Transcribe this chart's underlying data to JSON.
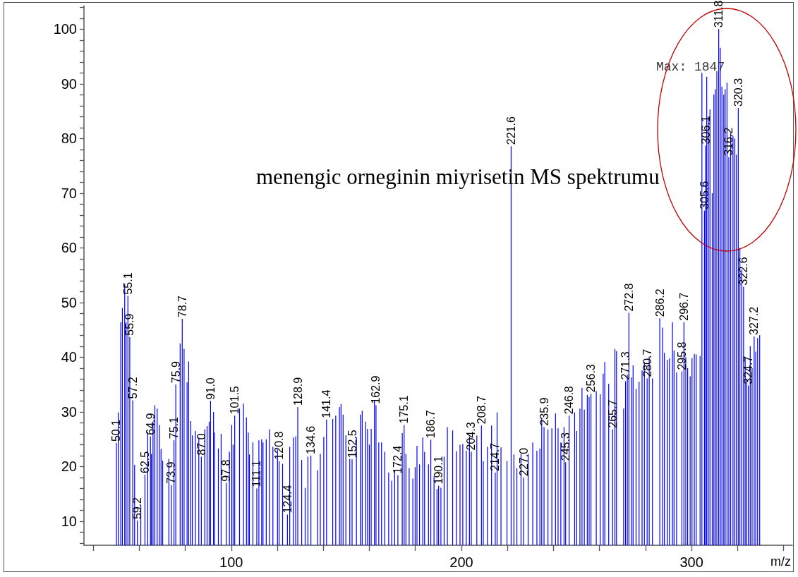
{
  "chart_data": {
    "type": "bar",
    "title": "menengic orneginin miyrisetin MS spektrumu",
    "xlabel": "m/z",
    "annotations": [
      "Max: 1847",
      {
        "text": "50.1",
        "x": 50.1,
        "y": 24.3
      },
      {
        "text": "55.1",
        "x": 55.1,
        "y": 51.2
      },
      {
        "text": "55.9",
        "x": 55.9,
        "y": 43.7
      },
      {
        "text": "57.2",
        "x": 57.2,
        "y": 32.1
      },
      {
        "text": "59.2",
        "x": 59.2,
        "y": 10.1
      },
      {
        "text": "62.5",
        "x": 62.5,
        "y": 18.5
      },
      {
        "text": "64.9",
        "x": 64.9,
        "y": 25.5
      },
      {
        "text": "73.9",
        "x": 73.9,
        "y": 16.6
      },
      {
        "text": "75.1",
        "x": 75.1,
        "y": 24.8
      },
      {
        "text": "75.9",
        "x": 75.9,
        "y": 35.0
      },
      {
        "text": "78.7",
        "x": 78.7,
        "y": 47.0
      },
      {
        "text": "87.0",
        "x": 87.0,
        "y": 21.8
      },
      {
        "text": "91.0",
        "x": 91.0,
        "y": 32.0
      },
      {
        "text": "97.8",
        "x": 97.8,
        "y": 17.0
      },
      {
        "text": "101.5",
        "x": 101.5,
        "y": 29.3
      },
      {
        "text": "111.1",
        "x": 111.1,
        "y": 16.0
      },
      {
        "text": "120.8",
        "x": 120.8,
        "y": 21.0
      },
      {
        "text": "124.4",
        "x": 124.4,
        "y": 11.2
      },
      {
        "text": "128.9",
        "x": 128.9,
        "y": 30.9
      },
      {
        "text": "134.6",
        "x": 134.6,
        "y": 22.0
      },
      {
        "text": "141.4",
        "x": 141.4,
        "y": 28.6
      },
      {
        "text": "152.5",
        "x": 152.5,
        "y": 21.3
      },
      {
        "text": "162.9",
        "x": 162.9,
        "y": 31.2
      },
      {
        "text": "172.4",
        "x": 172.4,
        "y": 18.4
      },
      {
        "text": "175.1",
        "x": 175.1,
        "y": 27.6
      },
      {
        "text": "186.7",
        "x": 186.7,
        "y": 24.9
      },
      {
        "text": "190.1",
        "x": 190.1,
        "y": 16.5
      },
      {
        "text": "204.3",
        "x": 204.3,
        "y": 22.7
      },
      {
        "text": "208.7",
        "x": 208.7,
        "y": 27.5
      },
      {
        "text": "214.7",
        "x": 214.7,
        "y": 18.9
      },
      {
        "text": "221.6",
        "x": 221.6,
        "y": 78.6
      },
      {
        "text": "227.0",
        "x": 227.0,
        "y": 18.0
      },
      {
        "text": "235.9",
        "x": 235.9,
        "y": 27.2
      },
      {
        "text": "245.3",
        "x": 245.3,
        "y": 20.8
      },
      {
        "text": "246.8",
        "x": 246.8,
        "y": 29.3
      },
      {
        "text": "256.3",
        "x": 256.3,
        "y": 33.3
      },
      {
        "text": "265.7",
        "x": 265.7,
        "y": 26.8
      },
      {
        "text": "271.3",
        "x": 271.3,
        "y": 35.6
      },
      {
        "text": "272.8",
        "x": 272.8,
        "y": 48.1
      },
      {
        "text": "280.7",
        "x": 280.7,
        "y": 36.1
      },
      {
        "text": "286.2",
        "x": 286.2,
        "y": 47.1
      },
      {
        "text": "295.8",
        "x": 295.8,
        "y": 37.4
      },
      {
        "text": "296.7",
        "x": 296.7,
        "y": 46.4
      },
      {
        "text": "305.6",
        "x": 305.6,
        "y": 66.8
      },
      {
        "text": "306.1",
        "x": 306.1,
        "y": 78.7
      },
      {
        "text": "311.8",
        "x": 311.8,
        "y": 100.0
      },
      {
        "text": "316.2",
        "x": 316.2,
        "y": 76.6
      },
      {
        "text": "320.3",
        "x": 320.3,
        "y": 85.6
      },
      {
        "text": "322.6",
        "x": 322.6,
        "y": 52.9
      },
      {
        "text": "324.7",
        "x": 324.7,
        "y": 34.8
      },
      {
        "text": "327.2",
        "x": 327.2,
        "y": 43.8
      }
    ],
    "color": "#0000ff",
    "xlim": [
      36,
      343.8
    ],
    "ylim": [
      5.6,
      104.3
    ],
    "xticks": [
      {
        "value": 40,
        "label": null
      },
      {
        "value": 60,
        "label": null
      },
      {
        "value": 80,
        "label": null
      },
      100,
      {
        "value": 120,
        "label": null
      },
      {
        "value": 140,
        "label": null
      },
      {
        "value": 160,
        "label": null
      },
      {
        "value": 180,
        "label": null
      },
      200,
      {
        "value": 220,
        "label": null
      },
      {
        "value": 240,
        "label": null
      },
      {
        "value": 260,
        "label": null
      },
      {
        "value": 280,
        "label": null
      },
      300,
      {
        "value": 320,
        "label": null
      },
      {
        "value": 340,
        "label": null
      }
    ],
    "yticks": [
      {
        "value": 6,
        "label": null
      },
      {
        "value": 8,
        "label": null
      },
      10,
      {
        "value": 12,
        "label": null
      },
      {
        "value": 14,
        "label": null
      },
      {
        "value": 16,
        "label": null
      },
      {
        "value": 18,
        "label": null
      },
      20,
      {
        "value": 22,
        "label": null
      },
      {
        "value": 24,
        "label": null
      },
      {
        "value": 26,
        "label": null
      },
      {
        "value": 28,
        "label": null
      },
      30,
      {
        "value": 32,
        "label": null
      },
      {
        "value": 34,
        "label": null
      },
      {
        "value": 36,
        "label": null
      },
      {
        "value": 38,
        "label": null
      },
      40,
      {
        "value": 42,
        "label": null
      },
      {
        "value": 44,
        "label": null
      },
      {
        "value": 46,
        "label": null
      },
      {
        "value": 48,
        "label": null
      },
      50,
      {
        "value": 52,
        "label": null
      },
      {
        "value": 54,
        "label": null
      },
      {
        "value": 56,
        "label": null
      },
      {
        "value": 58,
        "label": null
      },
      60,
      {
        "value": 62,
        "label": null
      },
      {
        "value": 64,
        "label": null
      },
      {
        "value": 66,
        "label": null
      },
      {
        "value": 68,
        "label": null
      },
      70,
      {
        "value": 72,
        "label": null
      },
      {
        "value": 74,
        "label": null
      },
      {
        "value": 76,
        "label": null
      },
      {
        "value": 78,
        "label": null
      },
      80,
      {
        "value": 82,
        "label": null
      },
      {
        "value": 84,
        "label": null
      },
      {
        "value": 86,
        "label": null
      },
      {
        "value": 88,
        "label": null
      },
      90,
      {
        "value": 92,
        "label": null
      },
      {
        "value": 94,
        "label": null
      },
      {
        "value": 96,
        "label": null
      },
      {
        "value": 98,
        "label": null
      },
      100,
      {
        "value": 102,
        "label": null
      },
      {
        "value": 104,
        "label": null
      }
    ],
    "x": [
      50.1,
      50.9,
      52.0,
      52.7,
      53.7,
      54.3,
      55.1,
      55.9,
      57.2,
      58.0,
      59.2,
      60.7,
      62.5,
      63.7,
      64.9,
      65.3,
      66.0,
      66.8,
      67.8,
      68.8,
      69.5,
      70.2,
      72.9,
      73.9,
      75.1,
      75.9,
      77.8,
      78.7,
      79.5,
      80.8,
      81.5,
      82.4,
      83.1,
      84.4,
      85.9,
      87.0,
      88.5,
      89.5,
      90.4,
      91.0,
      92.3,
      92.7,
      94.4,
      95.6,
      97.8,
      99.2,
      100.2,
      100.8,
      101.5,
      103.6,
      105.3,
      106.6,
      107.4,
      107.9,
      109.4,
      111.1,
      112.0,
      113.2,
      113.8,
      115.2,
      116.6,
      118.1,
      120.1,
      120.8,
      122.3,
      124.4,
      125.4,
      127.0,
      128.0,
      128.9,
      130.6,
      132.1,
      133.3,
      134.6,
      137.5,
      138.7,
      140.2,
      141.4,
      144.1,
      145.4,
      147.0,
      147.7,
      148.6,
      149.8,
      151.5,
      152.5,
      154.4,
      156.1,
      156.9,
      158.4,
      159.2,
      160.0,
      160.8,
      162.2,
      162.9,
      164.1,
      165.3,
      166.7,
      168.4,
      169.7,
      171.0,
      172.4,
      174.3,
      175.1,
      175.9,
      177.3,
      178.9,
      179.9,
      180.7,
      181.8,
      183.2,
      184.0,
      185.7,
      186.7,
      188.1,
      189.4,
      190.1,
      191.1,
      192.5,
      193.9,
      196.2,
      197.8,
      199.4,
      200.6,
      202.1,
      203.5,
      204.3,
      206.7,
      208.7,
      209.5,
      211.3,
      213.1,
      214.7,
      215.5,
      217.2,
      219.8,
      221.6,
      222.8,
      224.1,
      225.9,
      227.0,
      229.0,
      231.0,
      232.8,
      234.1,
      234.9,
      235.9,
      237.6,
      239.3,
      240.9,
      242.0,
      243.2,
      244.6,
      245.3,
      246.8,
      249.2,
      250.1,
      251.5,
      252.4,
      253.4,
      254.7,
      255.5,
      256.3,
      258.6,
      260.3,
      261.6,
      262.3,
      264.0,
      265.7,
      266.7,
      267.4,
      270.5,
      271.3,
      272.1,
      272.8,
      273.9,
      274.6,
      275.9,
      277.2,
      278.5,
      279.5,
      280.7,
      281.6,
      283.0,
      286.2,
      287.4,
      288.2,
      289.5,
      290.4,
      291.7,
      292.4,
      293.5,
      295.8,
      296.7,
      297.5,
      298.3,
      299.4,
      300.2,
      301.2,
      302.0,
      303.7,
      304.5,
      305.6,
      306.1,
      306.6,
      307.3,
      308.0,
      309.0,
      309.7,
      310.3,
      311.0,
      311.8,
      312.5,
      313.2,
      314.0,
      314.6,
      315.4,
      316.2,
      317.0,
      318.0,
      318.8,
      319.5,
      320.3,
      321.0,
      321.8,
      322.6,
      323.3,
      324.0,
      324.7,
      325.5,
      326.3,
      327.2,
      327.9,
      328.7,
      329.6
    ],
    "values": [
      24.3,
      29.9,
      46.4,
      49.0,
      53.4,
      46.4,
      51.2,
      43.7,
      32.1,
      20.3,
      10.1,
      12.9,
      18.5,
      26.3,
      25.5,
      22.3,
      28.2,
      31.2,
      30.6,
      27.6,
      23.2,
      21.1,
      21.4,
      16.6,
      24.8,
      35.0,
      42.5,
      47.0,
      41.5,
      35.4,
      39.2,
      28.3,
      25.7,
      26.5,
      25.3,
      21.8,
      26.8,
      27.4,
      28.2,
      32.0,
      30.0,
      26.2,
      23.3,
      26.0,
      17.0,
      22.7,
      27.6,
      24.0,
      29.3,
      30.6,
      31.5,
      29.0,
      26.2,
      22.2,
      24.4,
      16.0,
      24.8,
      25.0,
      24.4,
      25.0,
      26.8,
      23.6,
      23.1,
      21.0,
      20.5,
      11.2,
      23.6,
      25.3,
      25.5,
      30.9,
      21.2,
      16.1,
      21.8,
      22.0,
      19.3,
      22.3,
      25.4,
      28.6,
      28.7,
      29.3,
      30.9,
      31.4,
      29.5,
      25.7,
      21.4,
      21.3,
      25.3,
      29.5,
      30.2,
      28.2,
      26.9,
      24.0,
      26.9,
      32.1,
      31.2,
      24.4,
      24.4,
      22.7,
      18.9,
      17.4,
      19.3,
      18.4,
      26.1,
      27.6,
      22.3,
      19.7,
      17.8,
      19.9,
      23.8,
      20.4,
      25.3,
      22.7,
      20.4,
      24.9,
      18.2,
      15.9,
      16.5,
      16.1,
      21.8,
      27.2,
      26.6,
      22.8,
      24.0,
      24.1,
      22.9,
      25.5,
      22.7,
      25.7,
      27.5,
      21.0,
      23.6,
      27.5,
      18.9,
      29.9,
      23.5,
      21.0,
      78.6,
      22.2,
      19.7,
      22.3,
      18.0,
      22.3,
      24.4,
      22.9,
      23.3,
      28.9,
      27.2,
      26.8,
      27.0,
      29.7,
      27.0,
      24.4,
      27.2,
      20.8,
      29.3,
      29.9,
      26.5,
      30.6,
      34.4,
      30.4,
      33.1,
      32.7,
      33.3,
      33.8,
      33.2,
      37.0,
      39.1,
      35.1,
      26.8,
      41.5,
      41.1,
      30.6,
      35.6,
      36.8,
      48.1,
      36.3,
      38.5,
      34.2,
      35.5,
      37.6,
      39.1,
      36.1,
      40.1,
      36.1,
      47.1,
      45.4,
      40.8,
      39.5,
      39.8,
      46.4,
      41.2,
      37.2,
      37.4,
      46.4,
      40.0,
      38.0,
      36.5,
      39.8,
      40.6,
      40.5,
      40.2,
      92.0,
      66.8,
      78.7,
      91.3,
      84.0,
      85.3,
      70.0,
      88.0,
      89.0,
      92.3,
      100.0,
      96.6,
      89.5,
      88.0,
      89.0,
      90.2,
      76.6,
      81.0,
      80.5,
      80.0,
      77.0,
      85.6,
      60.0,
      56.0,
      52.9,
      40.0,
      36.0,
      34.8,
      42.0,
      38.0,
      43.8,
      41.0,
      43.5,
      44.0
    ]
  }
}
